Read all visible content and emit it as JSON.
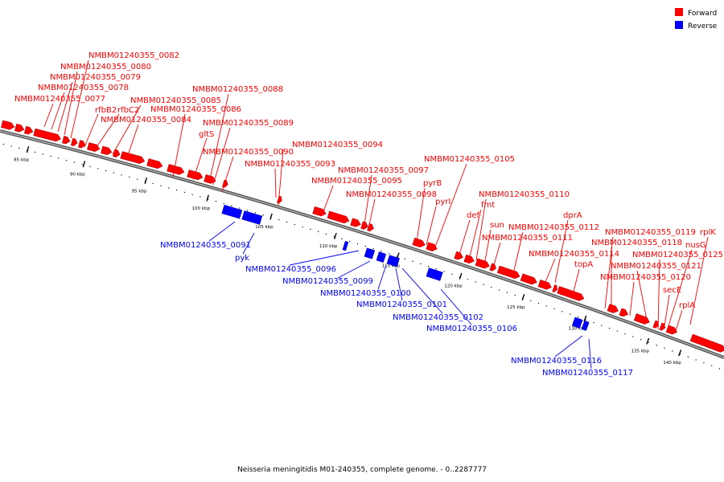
{
  "caption": "Neisseria meningitidis M01-240355, complete genome. - 0..2287777",
  "legend": {
    "forward": {
      "label": "Forward",
      "color": "#ff0000"
    },
    "reverse": {
      "label": "Reverse",
      "color": "#0000ff"
    }
  },
  "ticks": [
    "85 kbp",
    "90 kbp",
    "95 kbp",
    "100 kbp",
    "105 kbp",
    "110 kbp",
    "115 kbp",
    "120 kbp",
    "125 kbp",
    "130 kbp",
    "135 kbp",
    "140 kbp"
  ],
  "forward_labels": [
    "NMBM01240355_0082",
    "NMBM01240355_0080",
    "NMBM01240355_0079",
    "NMBM01240355_0078",
    "NMBM01240355_0077",
    "rfbB2",
    "rfbC2",
    "NMBM01240355_0085",
    "NMBM01240355_0088",
    "NMBM01240355_0086",
    "NMBM01240355_0084",
    "NMBM01240355_0089",
    "gltS",
    "NMBM01240355_0090",
    "NMBM01240355_0094",
    "NMBM01240355_0093",
    "NMBM01240355_0097",
    "NMBM01240355_0095",
    "NMBM01240355_0105",
    "pyrB",
    "NMBM01240355_0098",
    "pyrI",
    "NMBM01240355_0110",
    "fmt",
    "def",
    "sun",
    "dprA",
    "NMBM01240355_0112",
    "NMBM01240355_0111",
    "NMBM01240355_0119",
    "rplK",
    "NMBM01240355_0114",
    "NMBM01240355_0118",
    "nusG",
    "NMBM01240355_0125",
    "topA",
    "NMBM01240355_0121",
    "NMBM01240355_0120",
    "secE",
    "rplA"
  ],
  "reverse_labels": [
    "NMBM01240355_0091",
    "pyk",
    "NMBM01240355_0096",
    "NMBM01240355_0099",
    "NMBM01240355_0100",
    "NMBM01240355_0101",
    "NMBM01240355_0102",
    "NMBM01240355_0106",
    "NMBM01240355_0116",
    "NMBM01240355_0117"
  ]
}
